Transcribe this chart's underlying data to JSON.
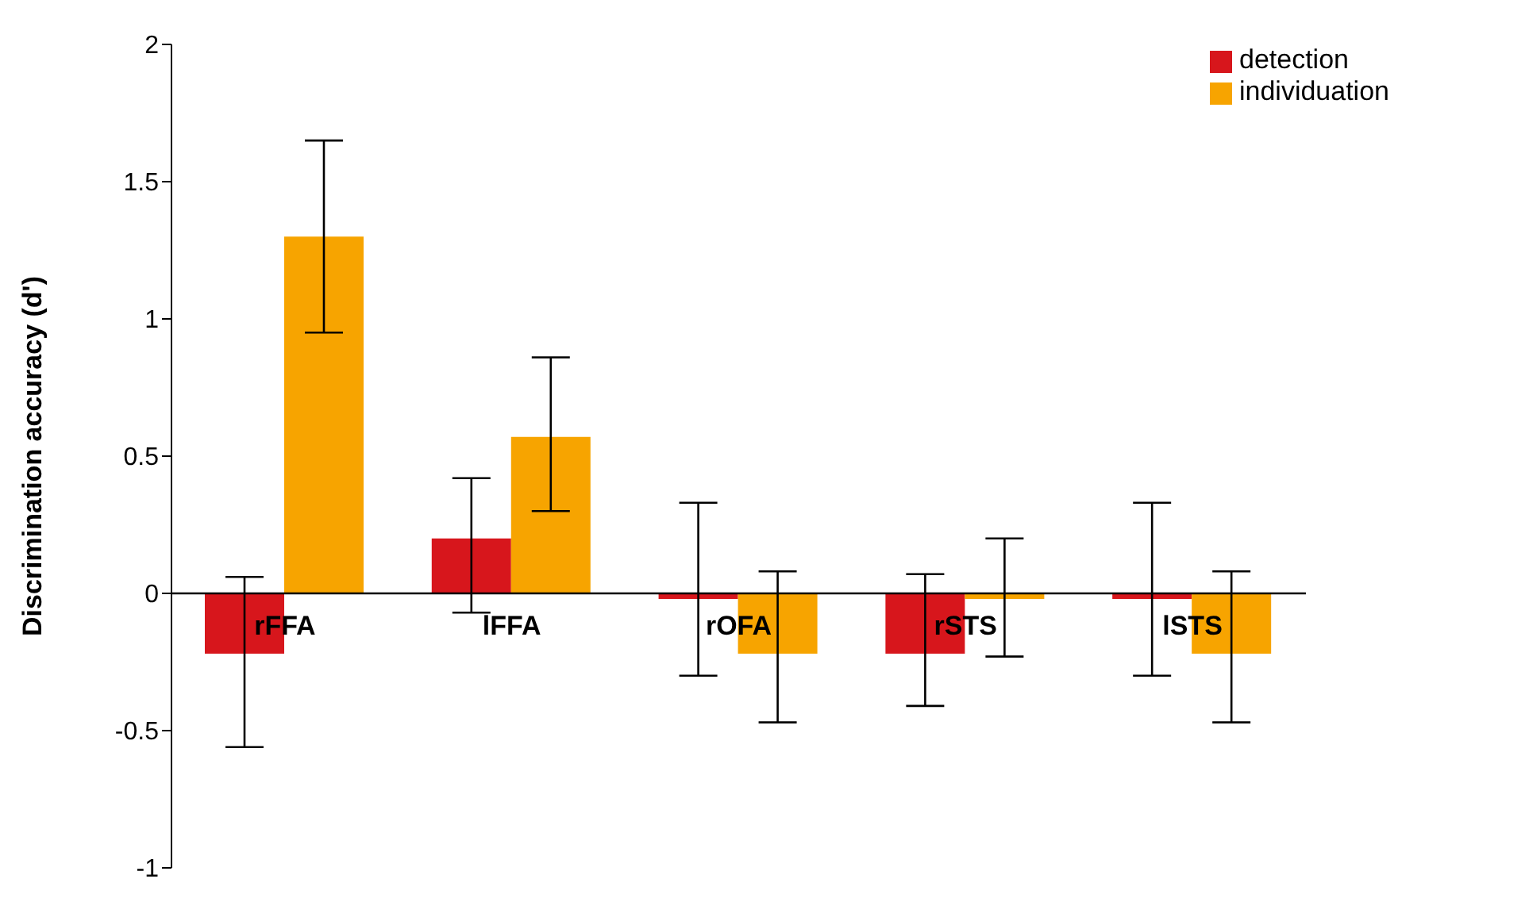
{
  "chart_data": {
    "type": "bar",
    "ylabel": "Discrimination accuracy (d')",
    "categories": [
      "rFFA",
      "lFFA",
      "rOFA",
      "rSTS",
      "lSTS"
    ],
    "ylim": [
      -1,
      2
    ],
    "yticks": [
      -1,
      -0.5,
      0,
      0.5,
      1,
      1.5,
      2
    ],
    "grid": false,
    "legend": "top right",
    "series": [
      {
        "name": "detection",
        "color": "#d7161c",
        "values": [
          -0.22,
          0.2,
          -0.02,
          -0.22,
          -0.02
        ],
        "errors": [
          [
            -0.56,
            0.06
          ],
          [
            -0.07,
            0.42
          ],
          [
            -0.3,
            0.33
          ],
          [
            -0.41,
            0.07
          ],
          [
            -0.3,
            0.33
          ]
        ]
      },
      {
        "name": "individuation",
        "color": "#f7a400",
        "values": [
          1.3,
          0.57,
          -0.22,
          -0.02,
          -0.22
        ],
        "errors": [
          [
            0.95,
            1.65
          ],
          [
            0.3,
            0.86
          ],
          [
            -0.47,
            0.08
          ],
          [
            -0.23,
            0.2
          ],
          [
            -0.47,
            0.08
          ]
        ]
      }
    ]
  }
}
